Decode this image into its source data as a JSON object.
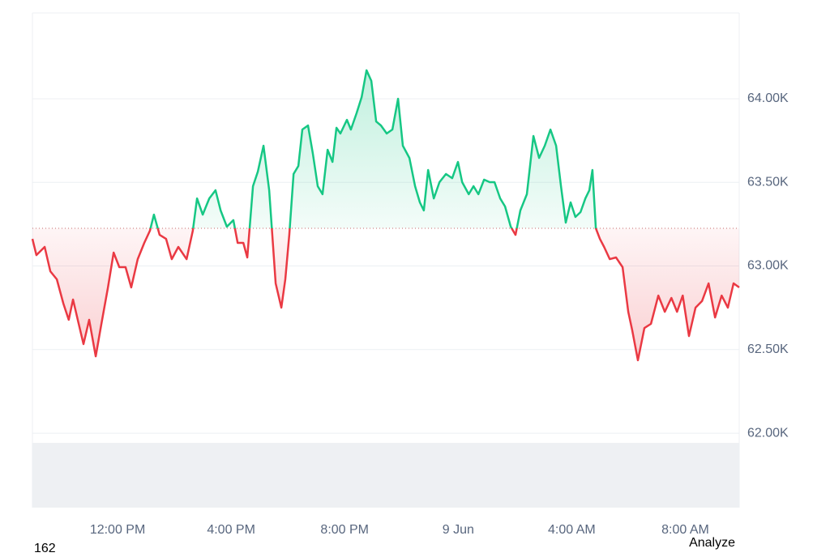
{
  "chart_data": {
    "type": "line",
    "x": [
      0,
      0.14,
      0.43,
      0.63,
      0.86,
      1.09,
      1.28,
      1.43,
      1.63,
      1.8,
      2.0,
      2.23,
      2.43,
      2.66,
      2.86,
      3.06,
      3.28,
      3.48,
      3.71,
      3.94,
      4.14,
      4.28,
      4.48,
      4.71,
      4.91,
      5.14,
      5.43,
      5.65,
      5.8,
      6.0,
      6.23,
      6.45,
      6.63,
      6.85,
      7.08,
      7.23,
      7.43,
      7.57,
      7.77,
      7.94,
      8.14,
      8.34,
      8.57,
      8.77,
      8.91,
      9.05,
      9.2,
      9.37,
      9.51,
      9.71,
      9.88,
      10.05,
      10.22,
      10.4,
      10.57,
      10.71,
      10.85,
      11.08,
      11.22,
      11.42,
      11.6,
      11.77,
      11.94,
      12.11,
      12.28,
      12.48,
      12.68,
      12.88,
      13.05,
      13.28,
      13.48,
      13.65,
      13.79,
      13.94,
      14.14,
      14.34,
      14.57,
      14.79,
      14.99,
      15.14,
      15.37,
      15.54,
      15.71,
      15.91,
      16.11,
      16.28,
      16.48,
      16.65,
      16.85,
      17.02,
      17.19,
      17.42,
      17.65,
      17.85,
      18.05,
      18.25,
      18.45,
      18.62,
      18.79,
      18.96,
      19.13,
      19.31,
      19.48,
      19.62,
      19.73,
      19.85,
      19.99,
      20.14,
      20.34,
      20.56,
      20.79,
      20.99,
      21.13,
      21.33,
      21.56,
      21.79,
      22.05,
      22.28,
      22.51,
      22.71,
      22.91,
      23.13,
      23.36,
      23.59,
      23.82,
      24.05,
      24.28,
      24.5,
      24.7,
      24.9
    ],
    "values": [
      63162,
      63065,
      63114,
      62968,
      62920,
      62775,
      62678,
      62799,
      62654,
      62533,
      62678,
      62460,
      62654,
      62872,
      63080,
      62993,
      62993,
      62872,
      63041,
      63138,
      63211,
      63307,
      63186,
      63162,
      63041,
      63114,
      63041,
      63211,
      63404,
      63307,
      63404,
      63453,
      63332,
      63235,
      63274,
      63138,
      63138,
      63051,
      63477,
      63564,
      63719,
      63453,
      62896,
      62751,
      62920,
      63186,
      63550,
      63598,
      63816,
      63840,
      63671,
      63477,
      63429,
      63695,
      63622,
      63826,
      63792,
      63874,
      63816,
      63913,
      64010,
      64170,
      64107,
      63864,
      63840,
      63792,
      63816,
      64000,
      63719,
      63646,
      63477,
      63380,
      63332,
      63574,
      63404,
      63501,
      63550,
      63525,
      63622,
      63501,
      63429,
      63477,
      63429,
      63516,
      63501,
      63501,
      63404,
      63356,
      63235,
      63186,
      63332,
      63429,
      63777,
      63646,
      63719,
      63816,
      63719,
      63477,
      63259,
      63380,
      63293,
      63322,
      63404,
      63453,
      63574,
      63225,
      63162,
      63114,
      63041,
      63051,
      62993,
      62726,
      62615,
      62436,
      62629,
      62654,
      62823,
      62726,
      62809,
      62726,
      62823,
      62581,
      62751,
      62790,
      62896,
      62692,
      62823,
      62751,
      62896,
      62872
    ],
    "baseline": 63225,
    "up_color": "#16c784",
    "down_color": "#ea3943",
    "xlim": [
      0,
      24.9
    ],
    "xticks": [
      {
        "value": 3,
        "label": "12:00 PM"
      },
      {
        "value": 7,
        "label": "4:00 PM"
      },
      {
        "value": 11,
        "label": "8:00 PM"
      },
      {
        "value": 15,
        "label": "9 Jun"
      },
      {
        "value": 19,
        "label": "4:00 AM"
      },
      {
        "value": 23,
        "label": "8:00 AM"
      }
    ],
    "ylim": [
      61555,
      64513
    ],
    "yticks": [
      {
        "value": 62000,
        "label": "62.00K"
      },
      {
        "value": 62500,
        "label": "62.50K"
      },
      {
        "value": 63000,
        "label": "63.00K"
      },
      {
        "value": 63500,
        "label": "63.50K"
      },
      {
        "value": 64000,
        "label": "64.00K"
      }
    ],
    "grid": true
  },
  "footer": {
    "left": "162",
    "right": "Analyze"
  }
}
